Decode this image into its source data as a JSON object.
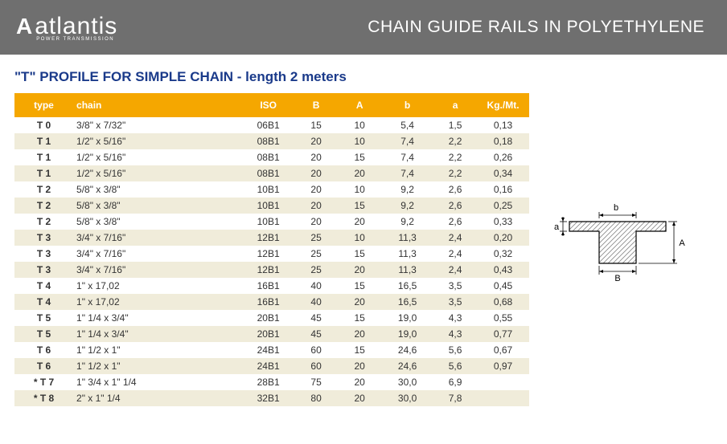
{
  "header": {
    "logo_mark": "A",
    "logo_text": "atlantis",
    "logo_sub": "POWER TRANSMISSION",
    "title": "CHAIN GUIDE RAILS IN POLYETHYLENE"
  },
  "section_title": "\"T\" PROFILE FOR SIMPLE CHAIN - length 2 meters",
  "table": {
    "columns": [
      "type",
      "chain",
      "ISO",
      "B",
      "A",
      "b",
      "a",
      "Kg./Mt."
    ],
    "rows": [
      [
        "T 0",
        "3/8\"  x  7/32\"",
        "06B1",
        "15",
        "10",
        "5,4",
        "1,5",
        "0,13"
      ],
      [
        "T 1",
        "1/2\"  x  5/16\"",
        "08B1",
        "20",
        "10",
        "7,4",
        "2,2",
        "0,18"
      ],
      [
        "T 1",
        "1/2\"  x  5/16\"",
        "08B1",
        "20",
        "15",
        "7,4",
        "2,2",
        "0,26"
      ],
      [
        "T 1",
        "1/2\"  x  5/16\"",
        "08B1",
        "20",
        "20",
        "7,4",
        "2,2",
        "0,34"
      ],
      [
        "T 2",
        "5/8\"  x  3/8\"",
        "10B1",
        "20",
        "10",
        "9,2",
        "2,6",
        "0,16"
      ],
      [
        "T 2",
        "5/8\"  x  3/8\"",
        "10B1",
        "20",
        "15",
        "9,2",
        "2,6",
        "0,25"
      ],
      [
        "T 2",
        "5/8\"  x  3/8\"",
        "10B1",
        "20",
        "20",
        "9,2",
        "2,6",
        "0,33"
      ],
      [
        "T 3",
        "3/4\"  x  7/16\"",
        "12B1",
        "25",
        "10",
        "11,3",
        "2,4",
        "0,20"
      ],
      [
        "T 3",
        "3/4\"  x  7/16\"",
        "12B1",
        "25",
        "15",
        "11,3",
        "2,4",
        "0,32"
      ],
      [
        "T 3",
        "3/4\"  x  7/16\"",
        "12B1",
        "25",
        "20",
        "11,3",
        "2,4",
        "0,43"
      ],
      [
        "T 4",
        "  1\"  x  17,02",
        "16B1",
        "40",
        "15",
        "16,5",
        "3,5",
        "0,45"
      ],
      [
        "T 4",
        "  1\"  x  17,02",
        "16B1",
        "40",
        "20",
        "16,5",
        "3,5",
        "0,68"
      ],
      [
        "T 5",
        "1\" 1/4  x  3/4\"",
        "20B1",
        "45",
        "15",
        "19,0",
        "4,3",
        "0,55"
      ],
      [
        "T 5",
        "1\" 1/4  x  3/4\"",
        "20B1",
        "45",
        "20",
        "19,0",
        "4,3",
        "0,77"
      ],
      [
        "T 6",
        "1\" 1/2  x  1\"",
        "24B1",
        "60",
        "15",
        "24,6",
        "5,6",
        "0,67"
      ],
      [
        "T 6",
        "1\" 1/2  x  1\"",
        "24B1",
        "60",
        "20",
        "24,6",
        "5,6",
        "0,97"
      ],
      [
        "* T 7",
        "1\" 3/4  x  1\" 1/4",
        "28B1",
        "75",
        "20",
        "30,0",
        "6,9",
        ""
      ],
      [
        "* T 8",
        "  2\"  x  1\" 1/4",
        "32B1",
        "80",
        "20",
        "30,0",
        "7,8",
        ""
      ]
    ],
    "header_bg": "#f5a700",
    "header_fg": "#ffffff",
    "row_odd_bg": "#ffffff",
    "row_even_bg": "#f0ecda",
    "text_color": "#333333",
    "title_color": "#1a3a8a",
    "font_size": 12
  },
  "diagram": {
    "label_b": "b",
    "label_a": "a",
    "label_B": "B",
    "label_A": "A",
    "stroke": "#000000",
    "fill": "#dcdcdc",
    "fontsize": 11
  }
}
